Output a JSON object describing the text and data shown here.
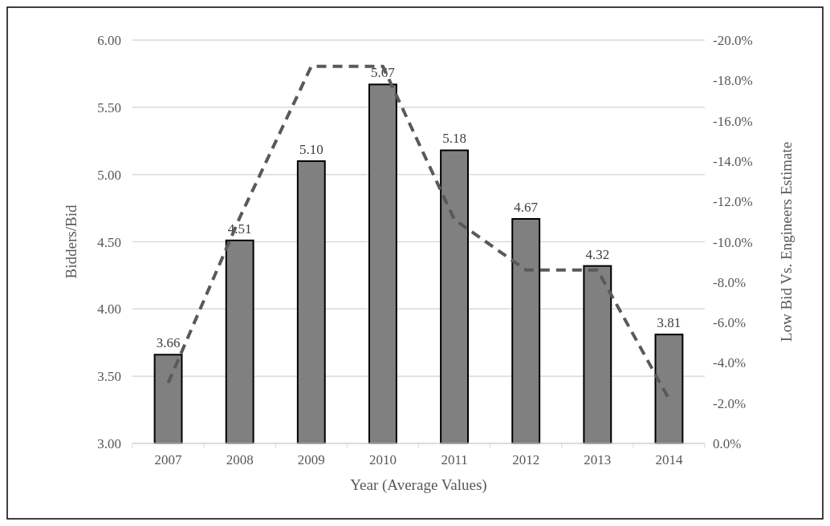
{
  "chart_data": {
    "type": "bar",
    "xlabel": "Year (Average Values)",
    "ylabel": "Bidders/Bid",
    "y2label": "Low Bid Vs. Engineers Estimate",
    "categories": [
      "2007",
      "2008",
      "2009",
      "2010",
      "2011",
      "2012",
      "2013",
      "2014"
    ],
    "series": [
      {
        "color": "#808080",
        "values": [
          3.66,
          4.51,
          5.1,
          5.67,
          5.18,
          4.67,
          4.32,
          3.81
        ],
        "value_labels": [
          "3.66",
          "4.51",
          "5.10",
          "5.67",
          "5.18",
          "4.67",
          "4.32",
          "3.81"
        ]
      },
      {
        "type": "line",
        "axis": "y2",
        "color": "#595959",
        "line_style": "dashed",
        "values": [
          -3.0,
          -11.2,
          -18.7,
          -18.7,
          -11.1,
          -8.6,
          -8.6,
          -2.2
        ]
      }
    ],
    "ylim": [
      3,
      6
    ],
    "yticks": [
      {
        "value": 3,
        "label": "3.00"
      },
      {
        "value": 3.5,
        "label": "3.50"
      },
      {
        "value": 4,
        "label": "4.00"
      },
      {
        "value": 4.5,
        "label": "4.50"
      },
      {
        "value": 5,
        "label": "5.00"
      },
      {
        "value": 5.5,
        "label": "5.50"
      },
      {
        "value": 6,
        "label": "6.00"
      }
    ],
    "y2lim": [
      0,
      -20
    ],
    "y2ticks": [
      {
        "value": 0,
        "label": "0.0%"
      },
      {
        "value": -2,
        "label": "-2.0%"
      },
      {
        "value": -4,
        "label": "-4.0%"
      },
      {
        "value": -6,
        "label": "-6.0%"
      },
      {
        "value": -8,
        "label": "-8.0%"
      },
      {
        "value": -10,
        "label": "-10.0%"
      },
      {
        "value": -12,
        "label": "-12.0%"
      },
      {
        "value": -14,
        "label": "-14.0%"
      },
      {
        "value": -16,
        "label": "-16.0%"
      },
      {
        "value": -18,
        "label": "-18.0%"
      },
      {
        "value": -20,
        "label": "-20.0%"
      }
    ],
    "grid": "y"
  }
}
